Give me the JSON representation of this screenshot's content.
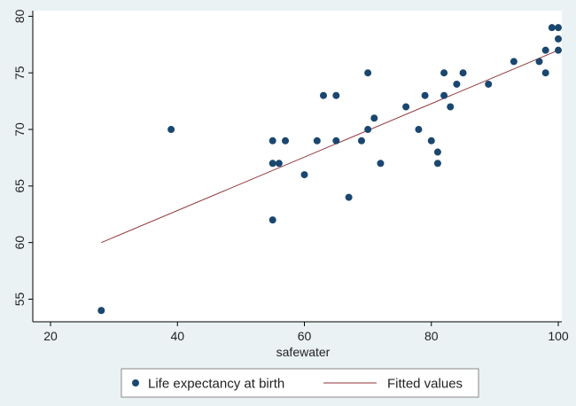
{
  "chart_data": {
    "type": "scatter",
    "xlabel": "safewater",
    "ylabel": "",
    "xlim": [
      18,
      100.5
    ],
    "ylim": [
      53,
      80.5
    ],
    "xticks": [
      20,
      40,
      60,
      80,
      100
    ],
    "yticks": [
      55,
      60,
      65,
      70,
      75,
      80
    ],
    "grid": false,
    "legend_position": "bottom",
    "series": [
      {
        "name": "Life expectancy at birth",
        "kind": "scatter",
        "color": "#1a476f",
        "points": [
          [
            28,
            54
          ],
          [
            39,
            70
          ],
          [
            55,
            69
          ],
          [
            55,
            67
          ],
          [
            55,
            62
          ],
          [
            56,
            67
          ],
          [
            57,
            69
          ],
          [
            60,
            66
          ],
          [
            62,
            69
          ],
          [
            63,
            73
          ],
          [
            65,
            73
          ],
          [
            65,
            69
          ],
          [
            67,
            64
          ],
          [
            69,
            69
          ],
          [
            70,
            75
          ],
          [
            70,
            70
          ],
          [
            71,
            71
          ],
          [
            72,
            67
          ],
          [
            76,
            72
          ],
          [
            78,
            70
          ],
          [
            79,
            73
          ],
          [
            80,
            69
          ],
          [
            81,
            68
          ],
          [
            81,
            67
          ],
          [
            82,
            75
          ],
          [
            82,
            73
          ],
          [
            83,
            72
          ],
          [
            84,
            74
          ],
          [
            85,
            75
          ],
          [
            89,
            74
          ],
          [
            93,
            76
          ],
          [
            97,
            76
          ],
          [
            98,
            77
          ],
          [
            98,
            75
          ],
          [
            99,
            79
          ],
          [
            100,
            79
          ],
          [
            100,
            78
          ],
          [
            100,
            77
          ]
        ]
      },
      {
        "name": "Fitted values",
        "kind": "line",
        "color": "#90353b",
        "points": [
          [
            28,
            60
          ],
          [
            100,
            77
          ]
        ]
      }
    ]
  }
}
